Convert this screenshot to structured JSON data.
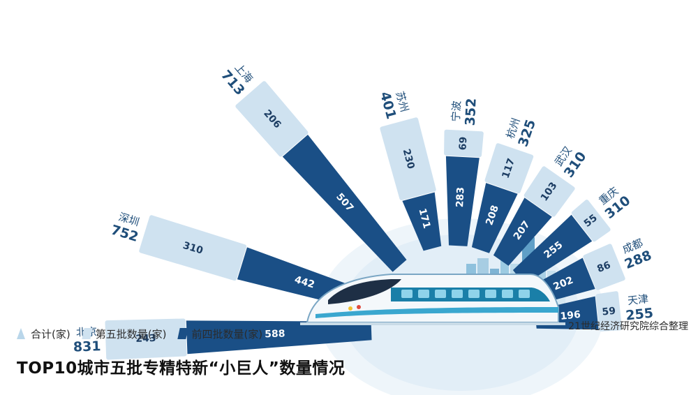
{
  "chart_data": {
    "type": "bar",
    "title": "TOP10城市五批专精特新“小巨人”数量情况",
    "source": "21世纪经济研究院综合整理",
    "legend": {
      "total": "合计(家)",
      "fifth": "第五批数量(家)",
      "prev": "前四批数量(家)"
    },
    "categories": [
      "北京",
      "深圳",
      "上海",
      "苏州",
      "宁波",
      "杭州",
      "武汉",
      "重庆",
      "成都",
      "天津"
    ],
    "totals": [
      831,
      752,
      713,
      401,
      352,
      325,
      310,
      310,
      288,
      255
    ],
    "series": [
      {
        "name": "第五批数量(家)",
        "values": [
          243,
          310,
          206,
          230,
          69,
          117,
          103,
          55,
          86,
          59
        ]
      },
      {
        "name": "前四批数量(家)",
        "values": [
          588,
          442,
          507,
          171,
          283,
          208,
          207,
          255,
          202,
          196
        ]
      }
    ],
    "colors": {
      "fifth": "#cfe2f0",
      "prev": "#1a4f86",
      "total_text": "#1f4e7a",
      "label_text": "#1c3d63"
    }
  }
}
